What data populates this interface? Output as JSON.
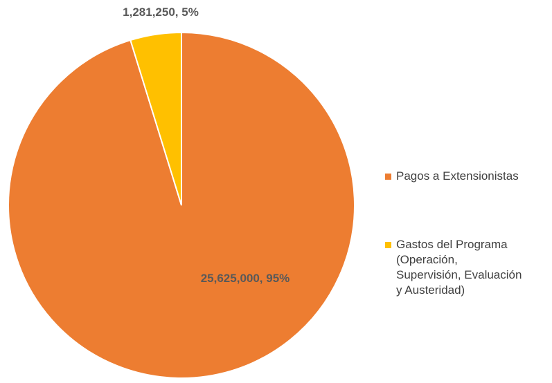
{
  "chart_data": {
    "type": "pie",
    "slices": [
      {
        "name": "Pagos a Extensionistas",
        "value": 25625000,
        "percent": 95,
        "color": "#ED7D31",
        "data_label": "25,625,000, 95%"
      },
      {
        "name": "Gastos del Programa\n(Operación,\nSupervisión, Evaluación\ny Austeridad)",
        "value": 1281250,
        "percent": 5,
        "color": "#FFC000",
        "data_label": "1,281,250, 5%"
      }
    ],
    "legend_position": "right"
  }
}
